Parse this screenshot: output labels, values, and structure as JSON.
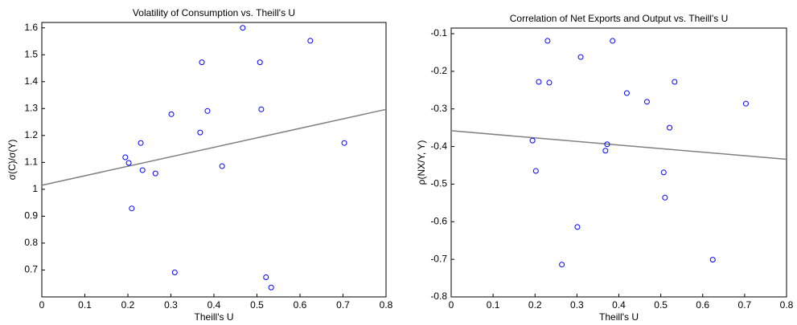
{
  "chart_data": [
    {
      "type": "scatter",
      "title": "Volatility of Consumption vs. Theill's U",
      "x_label": "Theill's U",
      "y_label": "σ(C)/σ(Y)",
      "xlim": [
        0,
        0.8
      ],
      "ylim": [
        0.6,
        1.62
      ],
      "xticks": [
        0,
        0.1,
        0.2,
        0.3,
        0.4,
        0.5,
        0.6,
        0.7,
        0.8
      ],
      "yticks": [
        0.7,
        0.8,
        0.9,
        1,
        1.1,
        1.2,
        1.3,
        1.4,
        1.5,
        1.6
      ],
      "color": "#0000ff",
      "x": [
        0.194,
        0.202,
        0.209,
        0.23,
        0.234,
        0.264,
        0.301,
        0.309,
        0.368,
        0.372,
        0.385,
        0.419,
        0.467,
        0.507,
        0.51,
        0.521,
        0.533,
        0.624,
        0.703
      ],
      "y": [
        1.119,
        1.098,
        0.929,
        1.172,
        1.071,
        1.059,
        1.279,
        0.691,
        1.211,
        1.472,
        1.291,
        1.086,
        1.6,
        1.472,
        1.297,
        0.673,
        0.635,
        1.552,
        1.172
      ],
      "fit": {
        "color": "#808080",
        "x": [
          0,
          0.8
        ],
        "y": [
          1.015,
          1.297
        ]
      }
    },
    {
      "type": "scatter",
      "title": "Correlation of Net Exports and Output vs. Theill's U",
      "x_label": "Theill's U",
      "y_label": "ρ(NX/Y, Y)",
      "xlim": [
        0,
        0.8
      ],
      "ylim": [
        -0.8,
        -0.085
      ],
      "xticks": [
        0,
        0.1,
        0.2,
        0.3,
        0.4,
        0.5,
        0.6,
        0.7,
        0.8
      ],
      "yticks": [
        -0.8,
        -0.7,
        -0.6,
        -0.5,
        -0.4,
        -0.3,
        -0.2,
        -0.1
      ],
      "color": "#0000ff",
      "x": [
        0.194,
        0.202,
        0.209,
        0.23,
        0.234,
        0.264,
        0.301,
        0.309,
        0.368,
        0.372,
        0.385,
        0.419,
        0.467,
        0.507,
        0.51,
        0.521,
        0.533,
        0.624,
        0.703
      ],
      "y": [
        -0.384,
        -0.465,
        -0.228,
        -0.119,
        -0.23,
        -0.714,
        -0.614,
        -0.162,
        -0.411,
        -0.394,
        -0.119,
        -0.258,
        -0.281,
        -0.469,
        -0.536,
        -0.35,
        -0.228,
        -0.701,
        -0.286
      ],
      "fit": {
        "color": "#808080",
        "x": [
          0,
          0.8
        ],
        "y": [
          -0.358,
          -0.434
        ]
      }
    }
  ]
}
